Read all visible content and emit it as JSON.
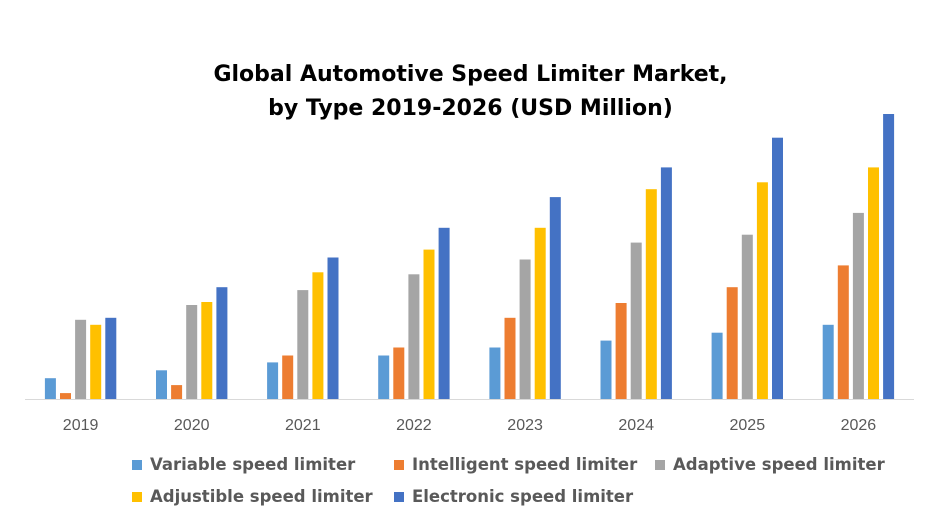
{
  "chart_data": {
    "type": "bar",
    "title_lines": [
      "Global Automotive Speed Limiter Market,",
      "by Type 2019-2026 (USD Million)"
    ],
    "categories": [
      "2019",
      "2020",
      "2021",
      "2022",
      "2023",
      "2024",
      "2025",
      "2026"
    ],
    "ylim": [
      0,
      290
    ],
    "grid": false,
    "legend_position": "bottom",
    "series": [
      {
        "name": "Variable speed limiter",
        "color": "#5b9bd5",
        "values": [
          21,
          29,
          37,
          44,
          52,
          59,
          67,
          75
        ]
      },
      {
        "name": "Intelligent speed limiter",
        "color": "#ed7d31",
        "values": [
          6,
          14,
          44,
          52,
          82,
          97,
          113,
          135
        ]
      },
      {
        "name": "Adaptive speed limiter",
        "color": "#a5a5a5",
        "values": [
          80,
          95,
          110,
          126,
          141,
          158,
          166,
          188
        ]
      },
      {
        "name": "Adjustible speed limiter",
        "color": "#ffc000",
        "values": [
          75,
          98,
          128,
          151,
          173,
          212,
          219,
          234
        ]
      },
      {
        "name": "Electronic speed limiter",
        "color": "#4472c4",
        "values": [
          82,
          113,
          143,
          173,
          204,
          234,
          264,
          288
        ]
      }
    ]
  }
}
